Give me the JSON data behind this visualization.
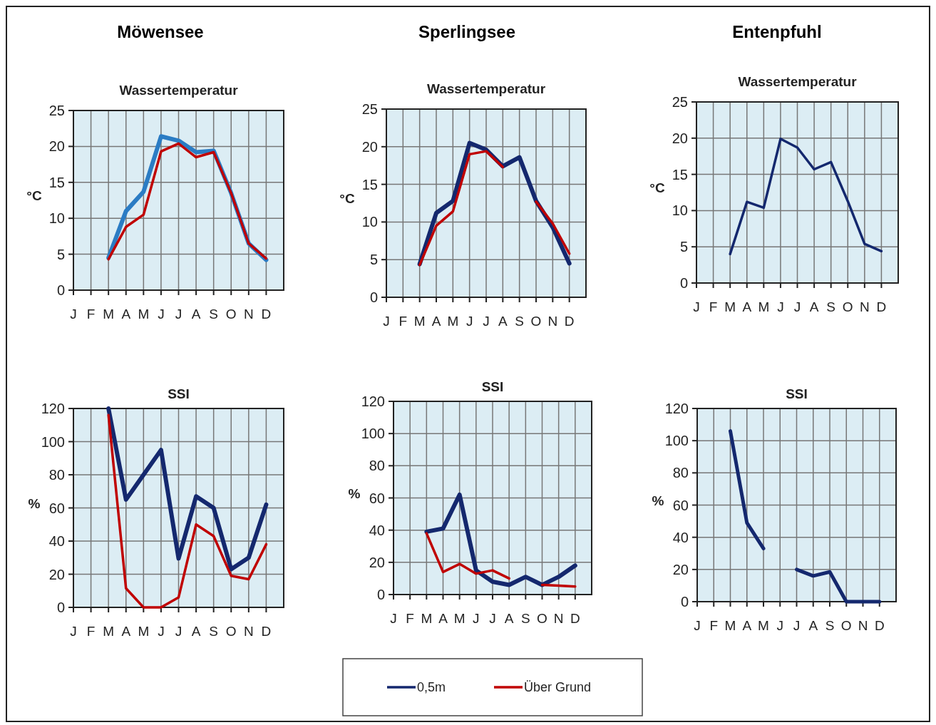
{
  "chart_data": [
    {
      "type": "line",
      "title": "Möwensee",
      "subtitle": "Wassertemperatur",
      "ylabel": "°C",
      "categories": [
        "J",
        "F",
        "M",
        "A",
        "M",
        "J",
        "J",
        "A",
        "S",
        "O",
        "N",
        "D"
      ],
      "ylim": [
        0,
        25
      ],
      "yticks": [
        0,
        5,
        10,
        15,
        20,
        25
      ],
      "grid": true,
      "series": [
        {
          "color": "#2b7cc4",
          "values": [
            null,
            null,
            4.5,
            11,
            13.7,
            21.4,
            20.8,
            19.2,
            19.4,
            13.5,
            6.5,
            4.2
          ]
        },
        {
          "color": "#c00000",
          "values": [
            null,
            null,
            4.3,
            8.8,
            10.5,
            19.3,
            20.4,
            18.5,
            19.2,
            13.5,
            6.5,
            4.4
          ]
        }
      ]
    },
    {
      "type": "line",
      "title": "Sperlingsee",
      "subtitle": "Wassertemperatur",
      "ylabel": "°C",
      "categories": [
        "J",
        "F",
        "M",
        "A",
        "M",
        "J",
        "J",
        "A",
        "S",
        "O",
        "N",
        "D"
      ],
      "ylim": [
        0,
        25
      ],
      "yticks": [
        0,
        5,
        10,
        15,
        20,
        25
      ],
      "grid": true,
      "series": [
        {
          "color": "#14286e",
          "values": [
            null,
            null,
            4.4,
            11.2,
            12.8,
            20.5,
            19.6,
            17.4,
            18.6,
            12.8,
            9.3,
            4.5
          ]
        },
        {
          "color": "#c00000",
          "values": [
            null,
            null,
            4.3,
            9.5,
            11.4,
            19.0,
            19.4,
            17.3,
            null,
            12.7,
            9.8,
            5.8
          ]
        }
      ]
    },
    {
      "type": "line",
      "title": "Entenpfuhl",
      "subtitle": "Wassertemperatur",
      "ylabel": "°C",
      "categories": [
        "J",
        "F",
        "M",
        "A",
        "M",
        "J",
        "J",
        "A",
        "S",
        "O",
        "N",
        "D"
      ],
      "ylim": [
        0,
        25
      ],
      "yticks": [
        0,
        5,
        10,
        15,
        20,
        25
      ],
      "grid": true,
      "series": [
        {
          "color": "#14286e",
          "values": [
            null,
            null,
            4.0,
            11.2,
            10.4,
            19.9,
            18.7,
            15.7,
            16.7,
            11.3,
            5.4,
            4.4
          ]
        }
      ]
    },
    {
      "type": "line",
      "title": "SSI",
      "ylabel": "%",
      "categories": [
        "J",
        "F",
        "M",
        "A",
        "M",
        "J",
        "J",
        "A",
        "S",
        "O",
        "N",
        "D"
      ],
      "ylim": [
        0,
        120
      ],
      "yticks": [
        0,
        20,
        40,
        60,
        80,
        100,
        120
      ],
      "grid": true,
      "series": [
        {
          "color": "#14286e",
          "values": [
            null,
            null,
            120,
            65,
            80,
            95,
            29.5,
            67,
            60,
            23,
            30,
            62
          ]
        },
        {
          "color": "#c00000",
          "values": [
            null,
            null,
            116,
            11.5,
            0,
            0,
            6,
            50,
            43,
            19,
            17,
            38
          ]
        }
      ]
    },
    {
      "type": "line",
      "title": "SSI",
      "ylabel": "%",
      "categories": [
        "J",
        "F",
        "M",
        "A",
        "M",
        "J",
        "J",
        "A",
        "S",
        "O",
        "N",
        "D"
      ],
      "ylim": [
        0,
        120
      ],
      "yticks": [
        0,
        20,
        40,
        60,
        80,
        100,
        120
      ],
      "grid": true,
      "legend": "bottom",
      "series": [
        {
          "name": "0,5m",
          "color": "#14286e",
          "values": [
            null,
            null,
            39,
            41,
            62,
            15,
            8,
            6,
            11,
            6,
            11,
            18
          ]
        },
        {
          "name": "Über Grund",
          "color": "#c00000",
          "values": [
            null,
            null,
            38,
            14,
            19,
            13,
            15,
            10,
            null,
            6,
            5.5,
            5
          ]
        }
      ]
    },
    {
      "type": "line",
      "title": "SSI",
      "ylabel": "%",
      "categories": [
        "J",
        "F",
        "M",
        "A",
        "M",
        "J",
        "J",
        "A",
        "S",
        "O",
        "N",
        "D"
      ],
      "ylim": [
        0,
        120
      ],
      "yticks": [
        0,
        20,
        40,
        60,
        80,
        100,
        120
      ],
      "grid": true,
      "series": [
        {
          "color": "#14286e",
          "values": [
            null,
            null,
            106,
            49,
            33,
            null,
            20,
            16,
            18.5,
            0,
            0,
            0
          ]
        }
      ]
    }
  ]
}
